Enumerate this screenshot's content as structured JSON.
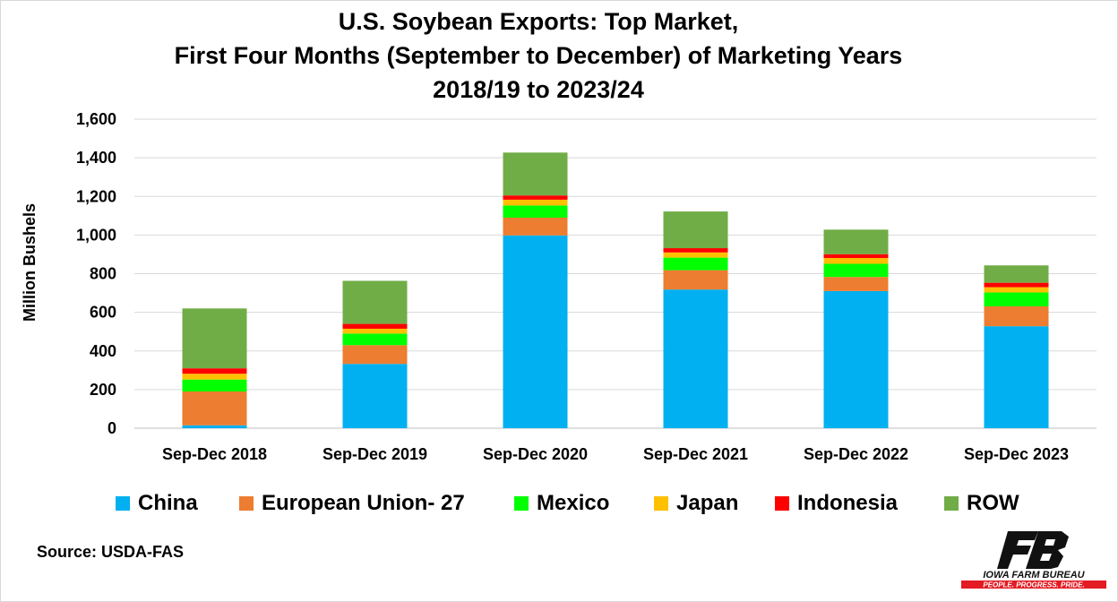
{
  "title_lines": [
    "U.S. Soybean Exports: Top Market,",
    "First Four Months (September to December) of Marketing Years",
    "2018/19 to 2023/24"
  ],
  "source": "Source: USDA-FAS",
  "logo": {
    "mark": "FB",
    "name": "IOWA FARM BUREAU",
    "tagline": "PEOPLE. PROGRESS. PRIDE.",
    "brand_color": "#e31b23"
  },
  "chart_data": {
    "type": "bar",
    "stacked": true,
    "title": "U.S. Soybean Exports: Top Market, First Four Months (September to December) of Marketing Years 2018/19 to 2023/24",
    "xlabel": "",
    "ylabel": "Million Bushels",
    "ylim": [
      0,
      1600
    ],
    "yticks": [
      0,
      200,
      400,
      600,
      800,
      1000,
      1200,
      1400,
      1600
    ],
    "ytick_labels": [
      "0",
      "200",
      "400",
      "600",
      "800",
      "1,000",
      "1,200",
      "1,400",
      "1,600"
    ],
    "grid": true,
    "legend_position": "bottom",
    "categories": [
      "Sep-Dec 2018",
      "Sep-Dec 2019",
      "Sep-Dec 2020",
      "Sep-Dec 2021",
      "Sep-Dec 2022",
      "Sep-Dec 2023"
    ],
    "series": [
      {
        "name": "China",
        "color": "#00b0f0",
        "values": [
          15,
          333,
          998,
          718,
          710,
          528
        ]
      },
      {
        "name": "European Union- 27",
        "color": "#ed7d31",
        "values": [
          175,
          97,
          92,
          100,
          73,
          103
        ]
      },
      {
        "name": "Mexico",
        "color": "#00ff00",
        "values": [
          62,
          60,
          63,
          65,
          68,
          72
        ]
      },
      {
        "name": "Japan",
        "color": "#ffc000",
        "values": [
          30,
          25,
          30,
          27,
          30,
          27
        ]
      },
      {
        "name": "Indonesia",
        "color": "#ff0000",
        "values": [
          28,
          25,
          22,
          22,
          20,
          23
        ]
      },
      {
        "name": "ROW",
        "color": "#70ad47",
        "values": [
          310,
          223,
          222,
          190,
          127,
          90
        ]
      }
    ]
  }
}
